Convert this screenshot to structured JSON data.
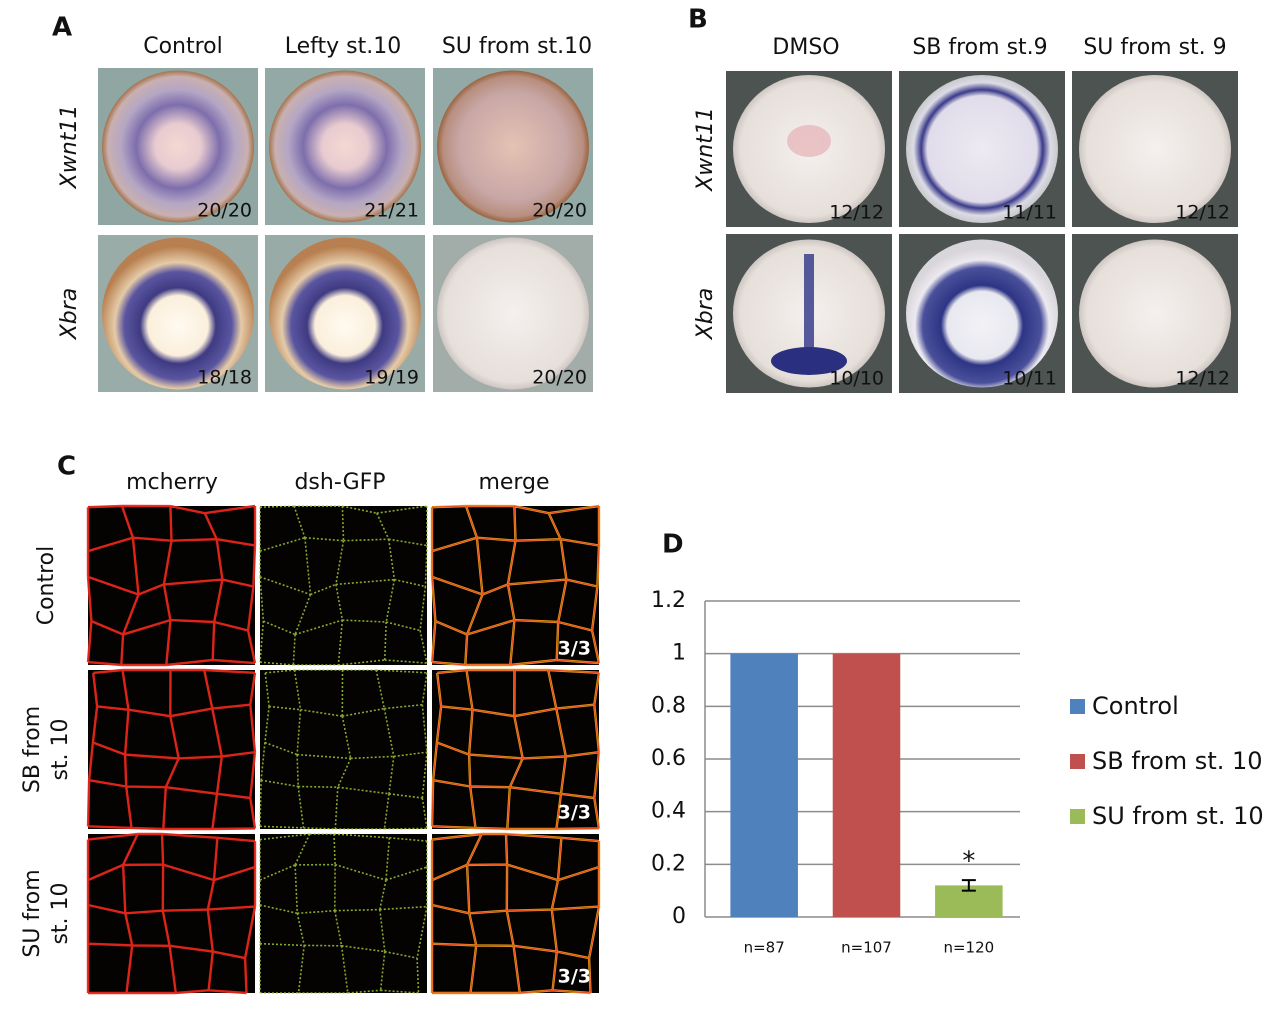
{
  "panel_a": {
    "label": "A",
    "columns": [
      "Control",
      "Lefty st.10",
      "SU from st.10"
    ],
    "rows": [
      {
        "label": "Xwnt11",
        "counts": [
          "20/20",
          "21/21",
          "20/20"
        ]
      },
      {
        "label": "Xbra",
        "counts": [
          "18/18",
          "19/19",
          "20/20"
        ]
      }
    ]
  },
  "panel_b": {
    "label": "B",
    "columns": [
      "DMSO",
      "SB from st.9",
      "SU from st. 9"
    ],
    "rows": [
      {
        "label": "Xwnt11",
        "counts": [
          "12/12",
          "11/11",
          "12/12"
        ]
      },
      {
        "label": "Xbra",
        "counts": [
          "10/10",
          "10/11",
          "12/12"
        ]
      }
    ]
  },
  "panel_c": {
    "label": "C",
    "columns": [
      "mcherry",
      "dsh-GFP",
      "merge"
    ],
    "rows": [
      {
        "label_lines": [
          "Control"
        ],
        "count": "3/3"
      },
      {
        "label_lines": [
          "SB from",
          "st. 10"
        ],
        "count": "3/3"
      },
      {
        "label_lines": [
          "SU from",
          "st. 10"
        ],
        "count": "3/3"
      }
    ]
  },
  "chart_data": {
    "type": "bar",
    "panel_label": "D",
    "categories": [
      "n=87",
      "n=107",
      "n=120"
    ],
    "series": [
      {
        "name": "Control",
        "color": "#4f81bd",
        "values": [
          1,
          null,
          null
        ]
      },
      {
        "name": "SB from st. 10",
        "color": "#c0504d",
        "values": [
          null,
          1,
          null
        ]
      },
      {
        "name": "SU from st. 10",
        "color": "#9bbb59",
        "values": [
          null,
          null,
          0.12
        ],
        "errors": [
          null,
          null,
          0.02
        ]
      }
    ],
    "annotation": "*",
    "ylim": [
      0,
      1.2
    ],
    "yticks": [
      0,
      0.2,
      0.4,
      0.6,
      0.8,
      1,
      1.2
    ],
    "grid": true,
    "legend": "right"
  }
}
